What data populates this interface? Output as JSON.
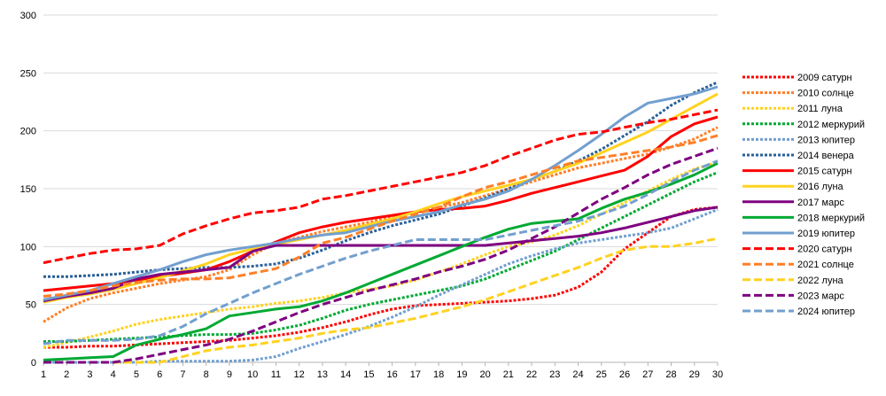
{
  "chart_data": {
    "type": "line",
    "title": "",
    "xlabel": "",
    "ylabel": "",
    "x": [
      1,
      2,
      3,
      4,
      5,
      6,
      7,
      8,
      9,
      10,
      11,
      12,
      13,
      14,
      15,
      16,
      17,
      18,
      19,
      20,
      21,
      22,
      23,
      24,
      25,
      26,
      27,
      28,
      29,
      30
    ],
    "ylim": [
      0,
      300
    ],
    "yticks": [
      0,
      50,
      100,
      150,
      200,
      250,
      300
    ],
    "grid": "horizontal",
    "legend_position": "right",
    "series": [
      {
        "name": "2009 сатурн",
        "color": "#ff0000",
        "dash": "dot",
        "values": [
          13,
          13,
          14,
          14,
          15,
          16,
          17,
          18,
          19,
          21,
          23,
          26,
          30,
          35,
          41,
          46,
          49,
          50,
          51,
          52,
          53,
          55,
          58,
          65,
          78,
          98,
          112,
          126,
          132,
          134
        ]
      },
      {
        "name": "2010 солнце",
        "color": "#ff7f27",
        "dash": "dot",
        "values": [
          35,
          47,
          55,
          60,
          64,
          68,
          71,
          74,
          80,
          93,
          103,
          108,
          113,
          117,
          121,
          126,
          130,
          134,
          138,
          144,
          150,
          156,
          162,
          168,
          172,
          176,
          180,
          186,
          193,
          203
        ]
      },
      {
        "name": "2011 луна",
        "color": "#ffd21f",
        "dash": "dot",
        "values": [
          13,
          17,
          22,
          27,
          33,
          37,
          40,
          43,
          46,
          48,
          51,
          53,
          56,
          60,
          63,
          66,
          71,
          78,
          85,
          93,
          100,
          104,
          110,
          118,
          128,
          138,
          148,
          158,
          167,
          173
        ]
      },
      {
        "name": "2012 меркурий",
        "color": "#00a933",
        "dash": "dot",
        "values": [
          18,
          18,
          19,
          20,
          21,
          22,
          23,
          24,
          24,
          25,
          28,
          32,
          38,
          45,
          50,
          54,
          58,
          62,
          66,
          72,
          80,
          88,
          96,
          106,
          116,
          126,
          136,
          146,
          156,
          164
        ]
      },
      {
        "name": "2013 юпитер",
        "color": "#729fcf",
        "dash": "dot",
        "values": [
          0,
          0,
          0,
          0,
          0,
          1,
          1,
          1,
          1,
          2,
          5,
          12,
          18,
          24,
          31,
          39,
          48,
          58,
          67,
          76,
          85,
          92,
          98,
          103,
          106,
          109,
          112,
          116,
          124,
          132
        ]
      },
      {
        "name": "2014 венера",
        "color": "#2a6099",
        "dash": "dot",
        "values": [
          74,
          74,
          75,
          76,
          78,
          80,
          81,
          82,
          82,
          83,
          85,
          90,
          97,
          105,
          112,
          118,
          123,
          128,
          135,
          142,
          150,
          158,
          165,
          174,
          184,
          196,
          208,
          222,
          233,
          242
        ]
      },
      {
        "name": "2015 сатурн",
        "color": "#ff0000",
        "dash": "solid",
        "values": [
          62,
          64,
          66,
          68,
          71,
          74,
          77,
          80,
          87,
          96,
          104,
          112,
          117,
          121,
          124,
          127,
          130,
          132,
          133,
          135,
          140,
          146,
          151,
          156,
          161,
          166,
          178,
          195,
          206,
          212
        ]
      },
      {
        "name": "2016 луна",
        "color": "#ffd21f",
        "dash": "solid",
        "values": [
          52,
          56,
          59,
          63,
          68,
          73,
          79,
          85,
          93,
          98,
          102,
          106,
          110,
          114,
          119,
          124,
          130,
          137,
          143,
          148,
          153,
          158,
          165,
          172,
          181,
          190,
          199,
          210,
          221,
          232
        ]
      },
      {
        "name": "2017 марс",
        "color": "#7e0080",
        "dash": "solid",
        "values": [
          53,
          57,
          60,
          64,
          72,
          76,
          78,
          80,
          82,
          96,
          101,
          101,
          101,
          101,
          101,
          101,
          101,
          101,
          101,
          101,
          103,
          105,
          107,
          109,
          112,
          116,
          121,
          126,
          131,
          134
        ]
      },
      {
        "name": "2018 меркурий",
        "color": "#00a933",
        "dash": "solid",
        "values": [
          2,
          3,
          4,
          5,
          15,
          20,
          24,
          29,
          40,
          43,
          46,
          48,
          53,
          60,
          68,
          76,
          84,
          92,
          100,
          108,
          115,
          120,
          122,
          124,
          133,
          141,
          147,
          154,
          162,
          172
        ]
      },
      {
        "name": "2019 юпитер",
        "color": "#729fcf",
        "dash": "solid",
        "values": [
          54,
          58,
          62,
          68,
          74,
          80,
          87,
          93,
          97,
          100,
          103,
          107,
          110,
          112,
          117,
          122,
          126,
          130,
          136,
          141,
          148,
          158,
          170,
          183,
          197,
          212,
          224,
          228,
          232,
          238
        ]
      },
      {
        "name": "2020 сатурн",
        "color": "#ff0000",
        "dash": "dash",
        "values": [
          86,
          90,
          94,
          97,
          98,
          101,
          111,
          118,
          124,
          129,
          131,
          134,
          141,
          144,
          148,
          152,
          156,
          160,
          164,
          170,
          178,
          185,
          192,
          197,
          199,
          203,
          207,
          210,
          214,
          218
        ]
      },
      {
        "name": "2021 солнце",
        "color": "#ff7f27",
        "dash": "dash",
        "values": [
          57,
          59,
          62,
          66,
          69,
          71,
          72,
          72,
          73,
          77,
          81,
          91,
          103,
          108,
          115,
          122,
          128,
          134,
          143,
          151,
          156,
          162,
          168,
          174,
          177,
          180,
          183,
          186,
          190,
          196
        ]
      },
      {
        "name": "2022 луна",
        "color": "#ffd21f",
        "dash": "dash",
        "values": [
          0,
          0,
          0,
          0,
          0,
          0,
          5,
          10,
          13,
          15,
          18,
          21,
          25,
          28,
          30,
          34,
          38,
          43,
          48,
          54,
          61,
          68,
          75,
          82,
          90,
          97,
          100,
          100,
          103,
          107
        ]
      },
      {
        "name": "2023 марс",
        "color": "#7e0080",
        "dash": "dash",
        "values": [
          0,
          0,
          0,
          0,
          3,
          7,
          11,
          15,
          20,
          27,
          35,
          43,
          50,
          56,
          62,
          67,
          72,
          78,
          83,
          89,
          97,
          107,
          117,
          129,
          141,
          151,
          162,
          171,
          178,
          185
        ]
      },
      {
        "name": "2024 юпитер",
        "color": "#729fcf",
        "dash": "dash",
        "values": [
          16,
          19,
          19,
          19,
          20,
          23,
          31,
          42,
          51,
          60,
          68,
          76,
          83,
          90,
          96,
          101,
          106,
          106,
          106,
          106,
          110,
          114,
          118,
          122,
          128,
          135,
          145,
          156,
          166,
          174
        ]
      }
    ]
  }
}
